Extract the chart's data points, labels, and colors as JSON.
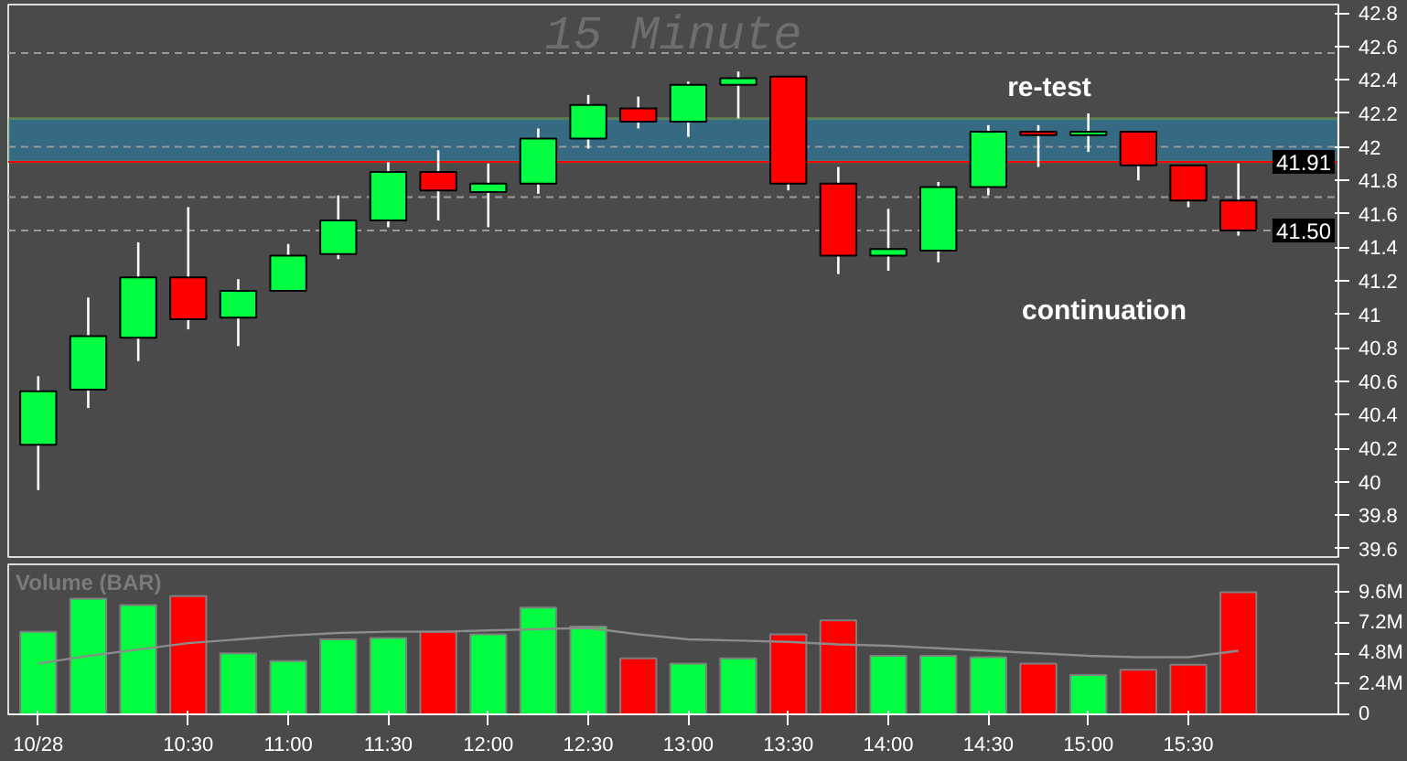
{
  "chart_data": [
    {
      "type": "candlestick",
      "title": "15 Minute",
      "x": [
        9.75,
        10,
        10.25,
        10.5,
        10.75,
        11,
        11.25,
        11.5,
        11.75,
        12,
        12.25,
        12.5,
        12.75,
        13,
        13.25,
        13.5,
        13.75,
        14,
        14.25,
        14.5,
        14.75,
        15,
        15.25,
        15.5,
        15.75
      ],
      "ohlc": [
        [
          40.22,
          40.63,
          39.95,
          40.54
        ],
        [
          40.55,
          41.1,
          40.44,
          40.87
        ],
        [
          40.86,
          41.43,
          40.72,
          41.22
        ],
        [
          41.22,
          41.64,
          40.91,
          40.97
        ],
        [
          40.98,
          41.21,
          40.81,
          41.14
        ],
        [
          41.14,
          41.42,
          41.14,
          41.35
        ],
        [
          41.36,
          41.71,
          41.33,
          41.56
        ],
        [
          41.56,
          41.91,
          41.52,
          41.85
        ],
        [
          41.85,
          41.98,
          41.56,
          41.74
        ],
        [
          41.73,
          41.9,
          41.52,
          41.78
        ],
        [
          41.78,
          42.11,
          41.72,
          42.05
        ],
        [
          42.05,
          42.31,
          41.99,
          42.25
        ],
        [
          42.23,
          42.3,
          42.11,
          42.15
        ],
        [
          42.15,
          42.39,
          42.06,
          42.37
        ],
        [
          42.37,
          42.45,
          42.17,
          42.41
        ],
        [
          42.42,
          42.42,
          41.74,
          41.78
        ],
        [
          41.78,
          41.88,
          41.24,
          41.35
        ],
        [
          41.35,
          41.63,
          41.26,
          41.39
        ],
        [
          41.38,
          41.79,
          41.31,
          41.76
        ],
        [
          41.76,
          42.13,
          41.71,
          42.09
        ],
        [
          42.09,
          42.13,
          41.88,
          42.07
        ],
        [
          42.07,
          42.2,
          41.97,
          42.09
        ],
        [
          42.09,
          42.09,
          41.8,
          41.89
        ],
        [
          41.89,
          41.89,
          41.64,
          41.68
        ],
        [
          41.68,
          41.9,
          41.47,
          41.5
        ]
      ],
      "colors": [
        "#00ff40",
        "#00ff40",
        "#00ff40",
        "#ff0000",
        "#00ff40",
        "#00ff40",
        "#00ff40",
        "#00ff40",
        "#ff0000",
        "#00ff40",
        "#00ff40",
        "#00ff40",
        "#ff0000",
        "#00ff40",
        "#00ff40",
        "#ff0000",
        "#ff0000",
        "#00ff40",
        "#00ff40",
        "#00ff40",
        "#ff0000",
        "#00ff40",
        "#ff0000",
        "#ff0000",
        "#ff0000"
      ],
      "xlim": [
        9.6,
        16.25
      ],
      "ylim": [
        39.55,
        42.85
      ],
      "yticks": [
        39.6,
        39.8,
        40,
        40.2,
        40.4,
        40.6,
        40.8,
        41,
        41.2,
        41.4,
        41.6,
        41.8,
        42,
        42.2,
        42.4,
        42.6,
        42.8
      ],
      "tick_labels": "y",
      "grid": false,
      "ref_lines": [
        {
          "axis": "y",
          "value": 42.56,
          "color": "#9a9a9a",
          "line_style": "dashed"
        },
        {
          "axis": "y",
          "value": 42.0,
          "color": "#9a9a9a",
          "line_style": "dashed"
        },
        {
          "axis": "y",
          "value": 41.7,
          "color": "#9a9a9a",
          "line_style": "dashed"
        },
        {
          "axis": "y",
          "value": 41.5,
          "label": "41.50",
          "color": "#9a9a9a",
          "line_style": "dashed"
        },
        {
          "axis": "y",
          "value": 41.91,
          "label": "41.91",
          "color": "#ff0000",
          "line_style": "solid"
        }
      ],
      "bands": [
        {
          "axis": "y",
          "from": 41.91,
          "to": 42.17,
          "label": "re-test",
          "color": "#1e90c8"
        }
      ],
      "annotations": [
        "continuation"
      ]
    },
    {
      "type": "bar",
      "title": "Volume (BAR)",
      "x": [
        9.75,
        10,
        10.25,
        10.5,
        10.75,
        11,
        11.25,
        11.5,
        11.75,
        12,
        12.25,
        12.5,
        12.75,
        13,
        13.25,
        13.5,
        13.75,
        14,
        14.25,
        14.5,
        14.75,
        15,
        15.25,
        15.5,
        15.75
      ],
      "series": [
        {
          "type": "bar",
          "values": [
            6.5,
            9.1,
            8.6,
            9.3,
            4.8,
            4.2,
            5.9,
            6.0,
            6.5,
            6.3,
            8.4,
            6.9,
            4.4,
            4.0,
            4.4,
            6.3,
            7.4,
            4.6,
            4.6,
            4.5,
            4.0,
            3.1,
            3.5,
            3.9,
            9.6
          ],
          "colors": [
            "#00ff40",
            "#00ff40",
            "#00ff40",
            "#ff0000",
            "#00ff40",
            "#00ff40",
            "#00ff40",
            "#00ff40",
            "#ff0000",
            "#00ff40",
            "#00ff40",
            "#00ff40",
            "#ff0000",
            "#00ff40",
            "#00ff40",
            "#ff0000",
            "#ff0000",
            "#00ff40",
            "#00ff40",
            "#00ff40",
            "#ff0000",
            "#00ff40",
            "#ff0000",
            "#ff0000",
            "#ff0000"
          ]
        },
        {
          "type": "line",
          "color": "#8c8c8c",
          "values": [
            4.0,
            4.6,
            5.1,
            5.6,
            5.9,
            6.2,
            6.4,
            6.5,
            6.5,
            6.6,
            6.7,
            6.8,
            6.3,
            5.9,
            5.8,
            5.7,
            5.5,
            5.4,
            5.2,
            5.0,
            4.8,
            4.6,
            4.5,
            4.5,
            5.0
          ]
        }
      ],
      "xlim": [
        9.6,
        16.25
      ],
      "ylim": [
        0,
        11.8
      ],
      "yticks": [
        0,
        {
          "value": 2.4,
          "label": "2.4M"
        },
        {
          "value": 4.8,
          "label": "4.8M"
        },
        {
          "value": 7.2,
          "label": "7.2M"
        },
        {
          "value": 9.6,
          "label": "9.6M"
        }
      ],
      "xticks": [
        {
          "value": 9.75,
          "label": "10/28"
        },
        {
          "value": 10.5,
          "label": "10:30"
        },
        {
          "value": 11,
          "label": "11:00"
        },
        {
          "value": 11.5,
          "label": "11:30"
        },
        {
          "value": 12,
          "label": "12:00"
        },
        {
          "value": 12.5,
          "label": "12:30"
        },
        {
          "value": 13,
          "label": "13:00"
        },
        {
          "value": 13.5,
          "label": "13:30"
        },
        {
          "value": 14,
          "label": "14:00"
        },
        {
          "value": 14.5,
          "label": "14:30"
        },
        {
          "value": 15,
          "label": "15:00"
        },
        {
          "value": 15.5,
          "label": "15:30"
        }
      ],
      "grid": false
    }
  ]
}
